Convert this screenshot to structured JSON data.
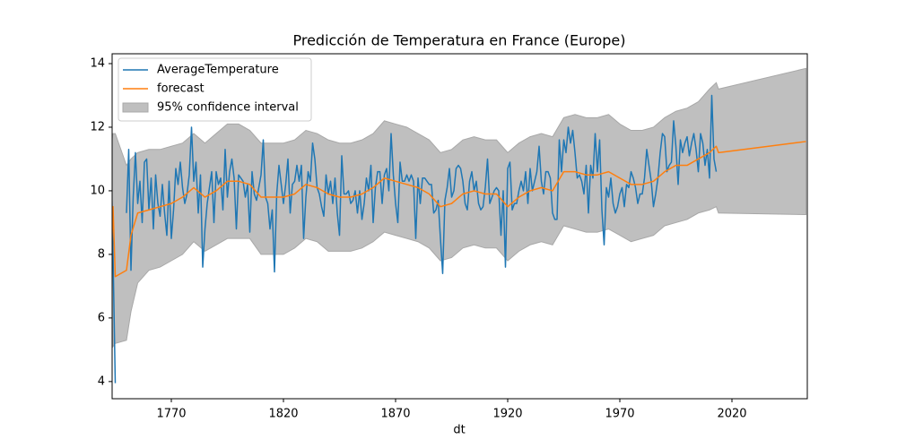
{
  "chart_data": {
    "type": "line",
    "title": "Predicción de Temperatura en France (Europe)",
    "x_label": "dt",
    "xlim": [
      1743.6,
      2053.6
    ],
    "xticks": [
      1770,
      1820,
      1870,
      1920,
      1970,
      2020
    ],
    "ylim": [
      3.46,
      14.31
    ],
    "yticks": [
      4,
      6,
      8,
      10,
      12,
      14
    ],
    "legend": "upper left",
    "x": [
      1743,
      1744,
      1745,
      1746,
      1747,
      1748,
      1749,
      1750,
      1751,
      1752,
      1753,
      1754,
      1755,
      1756,
      1757,
      1758,
      1759,
      1760,
      1761,
      1762,
      1763,
      1764,
      1765,
      1766,
      1767,
      1768,
      1769,
      1770,
      1771,
      1772,
      1773,
      1774,
      1775,
      1776,
      1777,
      1778,
      1779,
      1780,
      1781,
      1782,
      1783,
      1784,
      1785,
      1786,
      1787,
      1788,
      1789,
      1790,
      1791,
      1792,
      1793,
      1794,
      1795,
      1796,
      1797,
      1798,
      1799,
      1800,
      1801,
      1802,
      1803,
      1804,
      1805,
      1806,
      1807,
      1808,
      1809,
      1810,
      1811,
      1812,
      1813,
      1814,
      1815,
      1816,
      1817,
      1818,
      1819,
      1820,
      1821,
      1822,
      1823,
      1824,
      1825,
      1826,
      1827,
      1828,
      1829,
      1830,
      1831,
      1832,
      1833,
      1834,
      1835,
      1836,
      1837,
      1838,
      1839,
      1840,
      1841,
      1842,
      1843,
      1844,
      1845,
      1846,
      1847,
      1848,
      1849,
      1850,
      1851,
      1852,
      1853,
      1854,
      1855,
      1856,
      1857,
      1858,
      1859,
      1860,
      1861,
      1862,
      1863,
      1864,
      1865,
      1866,
      1867,
      1868,
      1869,
      1870,
      1871,
      1872,
      1873,
      1874,
      1875,
      1876,
      1877,
      1878,
      1879,
      1880,
      1881,
      1882,
      1883,
      1884,
      1885,
      1886,
      1887,
      1888,
      1889,
      1890,
      1891,
      1892,
      1893,
      1894,
      1895,
      1896,
      1897,
      1898,
      1899,
      1900,
      1901,
      1902,
      1903,
      1904,
      1905,
      1906,
      1907,
      1908,
      1909,
      1910,
      1911,
      1912,
      1913,
      1914,
      1915,
      1916,
      1917,
      1918,
      1919,
      1920,
      1921,
      1922,
      1923,
      1924,
      1925,
      1926,
      1927,
      1928,
      1929,
      1930,
      1931,
      1932,
      1933,
      1934,
      1935,
      1936,
      1937,
      1938,
      1939,
      1940,
      1941,
      1942,
      1943,
      1944,
      1945,
      1946,
      1947,
      1948,
      1949,
      1950,
      1951,
      1952,
      1953,
      1954,
      1955,
      1956,
      1957,
      1958,
      1959,
      1960,
      1961,
      1962,
      1963,
      1964,
      1965,
      1966,
      1967,
      1968,
      1969,
      1970,
      1971,
      1972,
      1973,
      1974,
      1975,
      1976,
      1977,
      1978,
      1979,
      1980,
      1981,
      1982,
      1983,
      1984,
      1985,
      1986,
      1987,
      1988,
      1989,
      1990,
      1991,
      1992,
      1993,
      1994,
      1995,
      1996,
      1997,
      1998,
      1999,
      2000,
      2001,
      2002,
      2003,
      2004,
      2005,
      2006,
      2007,
      2008,
      2009,
      2010,
      2011,
      2012,
      2013
    ],
    "series": [
      {
        "name": "AverageTemperature",
        "color": "#1f77b4",
        "values": [
          11.4,
          8.0,
          3.95,
          null,
          null,
          null,
          null,
          9.3,
          11.3,
          7.5,
          9.8,
          11.2,
          9.6,
          10.3,
          9.0,
          10.9,
          11.0,
          9.4,
          10.4,
          8.8,
          10.5,
          9.6,
          9.2,
          10.2,
          9.3,
          8.6,
          10.3,
          8.5,
          9.4,
          10.7,
          10.2,
          10.9,
          10.1,
          9.6,
          9.9,
          10.5,
          12.0,
          10.3,
          10.9,
          9.3,
          10.5,
          7.6,
          8.8,
          9.6,
          10.1,
          10.6,
          9.0,
          10.6,
          10.2,
          10.4,
          9.4,
          11.3,
          9.8,
          10.6,
          11.0,
          10.4,
          8.8,
          10.5,
          10.4,
          10.3,
          9.8,
          10.2,
          8.7,
          10.6,
          9.9,
          9.7,
          10.1,
          10.5,
          11.6,
          9.8,
          9.6,
          8.8,
          9.4,
          7.45,
          9.9,
          10.8,
          10.2,
          9.6,
          10.2,
          11.0,
          9.3,
          10.2,
          10.3,
          10.8,
          10.3,
          10.8,
          8.5,
          9.8,
          10.6,
          10.3,
          11.5,
          11.0,
          10.1,
          9.9,
          9.5,
          9.2,
          10.5,
          9.9,
          10.3,
          9.6,
          10.4,
          9.3,
          8.6,
          11.1,
          9.9,
          9.9,
          10.0,
          9.6,
          9.7,
          10.0,
          9.3,
          10.0,
          9.1,
          9.6,
          10.4,
          10.0,
          10.8,
          9.0,
          10.1,
          10.6,
          10.6,
          9.6,
          10.5,
          10.7,
          10.0,
          11.8,
          10.5,
          9.6,
          9.0,
          10.9,
          10.3,
          10.3,
          10.5,
          10.3,
          10.5,
          10.3,
          8.5,
          10.4,
          9.6,
          10.4,
          10.4,
          10.3,
          10.2,
          10.2,
          9.3,
          9.4,
          9.7,
          8.5,
          7.4,
          9.7,
          10.1,
          10.7,
          9.8,
          10.0,
          10.7,
          10.8,
          10.7,
          10.3,
          9.6,
          9.4,
          10.3,
          10.6,
          10.0,
          10.3,
          9.6,
          9.4,
          9.5,
          10.1,
          11.0,
          9.6,
          9.8,
          10.0,
          10.1,
          10.0,
          8.6,
          10.0,
          7.6,
          10.7,
          10.9,
          9.4,
          9.6,
          9.6,
          10.0,
          10.3,
          10.0,
          10.6,
          9.6,
          10.7,
          10.0,
          10.3,
          10.6,
          11.4,
          10.3,
          9.9,
          10.6,
          10.6,
          10.4,
          9.3,
          9.1,
          9.1,
          11.6,
          10.6,
          11.6,
          11.2,
          12.0,
          11.5,
          11.9,
          11.2,
          10.4,
          10.5,
          10.3,
          9.9,
          10.8,
          9.3,
          10.8,
          10.4,
          11.8,
          10.6,
          11.6,
          9.4,
          8.3,
          10.1,
          9.8,
          10.4,
          9.6,
          9.3,
          9.5,
          9.9,
          10.1,
          9.5,
          10.2,
          10.1,
          10.6,
          10.4,
          10.1,
          9.6,
          9.9,
          9.9,
          10.4,
          11.3,
          10.8,
          10.3,
          9.5,
          9.9,
          10.4,
          11.2,
          11.8,
          11.7,
          10.6,
          10.8,
          10.9,
          12.2,
          11.4,
          10.2,
          11.6,
          11.2,
          11.5,
          11.7,
          11.1,
          11.5,
          11.8,
          11.3,
          10.6,
          11.8,
          11.5,
          10.8,
          11.3,
          10.4,
          13.0,
          11.0,
          10.6
        ]
      }
    ],
    "forecast": {
      "name": "forecast",
      "color": "#ff7f0e",
      "x": [
        1743,
        1744,
        1745,
        1750,
        1752,
        1755,
        1760,
        1765,
        1770,
        1775,
        1780,
        1785,
        1790,
        1795,
        1800,
        1805,
        1810,
        1815,
        1820,
        1825,
        1830,
        1835,
        1840,
        1845,
        1850,
        1855,
        1860,
        1865,
        1870,
        1875,
        1880,
        1885,
        1890,
        1895,
        1900,
        1905,
        1910,
        1915,
        1920,
        1925,
        1930,
        1935,
        1940,
        1945,
        1950,
        1955,
        1960,
        1965,
        1970,
        1975,
        1980,
        1985,
        1990,
        1995,
        2000,
        2005,
        2010,
        2013,
        2014,
        2053
      ],
      "values": [
        7.3,
        9.5,
        7.3,
        7.5,
        8.6,
        9.3,
        9.4,
        9.5,
        9.6,
        9.8,
        10.1,
        9.8,
        10.0,
        10.3,
        10.3,
        10.2,
        9.8,
        9.8,
        9.8,
        9.9,
        10.2,
        10.1,
        9.9,
        9.8,
        9.8,
        9.9,
        10.1,
        10.4,
        10.3,
        10.2,
        10.1,
        9.9,
        9.5,
        9.6,
        9.9,
        10.0,
        9.9,
        9.9,
        9.5,
        9.8,
        10.0,
        10.1,
        10.0,
        10.6,
        10.6,
        10.5,
        10.5,
        10.6,
        10.4,
        10.2,
        10.2,
        10.3,
        10.6,
        10.8,
        10.8,
        11.0,
        11.2,
        11.4,
        11.2,
        11.55
      ]
    },
    "confidence_interval": {
      "name": "95% confidence interval",
      "color": "#bfbfbf",
      "upper": [
        11.4,
        11.8,
        11.8,
        10.8,
        11.0,
        11.2,
        11.3,
        11.3,
        11.4,
        11.5,
        11.8,
        11.5,
        11.8,
        12.1,
        12.1,
        11.9,
        11.5,
        11.5,
        11.5,
        11.6,
        11.9,
        11.8,
        11.6,
        11.5,
        11.5,
        11.6,
        11.8,
        12.2,
        12.1,
        12.0,
        11.8,
        11.6,
        11.2,
        11.3,
        11.6,
        11.7,
        11.6,
        11.6,
        11.2,
        11.5,
        11.7,
        11.8,
        11.7,
        12.3,
        12.4,
        12.3,
        12.3,
        12.4,
        12.1,
        11.9,
        11.9,
        12.0,
        12.3,
        12.5,
        12.6,
        12.8,
        13.2,
        13.4,
        13.2,
        13.85
      ],
      "lower": [
        7.3,
        5.1,
        5.2,
        5.3,
        6.2,
        7.1,
        7.5,
        7.6,
        7.8,
        8.0,
        8.4,
        8.1,
        8.3,
        8.5,
        8.5,
        8.5,
        8.0,
        8.0,
        8.0,
        8.2,
        8.5,
        8.4,
        8.1,
        8.1,
        8.1,
        8.2,
        8.4,
        8.7,
        8.6,
        8.5,
        8.4,
        8.2,
        7.8,
        7.9,
        8.2,
        8.3,
        8.2,
        8.2,
        7.8,
        8.1,
        8.3,
        8.4,
        8.3,
        8.9,
        8.8,
        8.7,
        8.7,
        8.8,
        8.6,
        8.4,
        8.5,
        8.6,
        8.9,
        9.0,
        9.1,
        9.3,
        9.4,
        9.5,
        9.3,
        9.25
      ]
    }
  }
}
